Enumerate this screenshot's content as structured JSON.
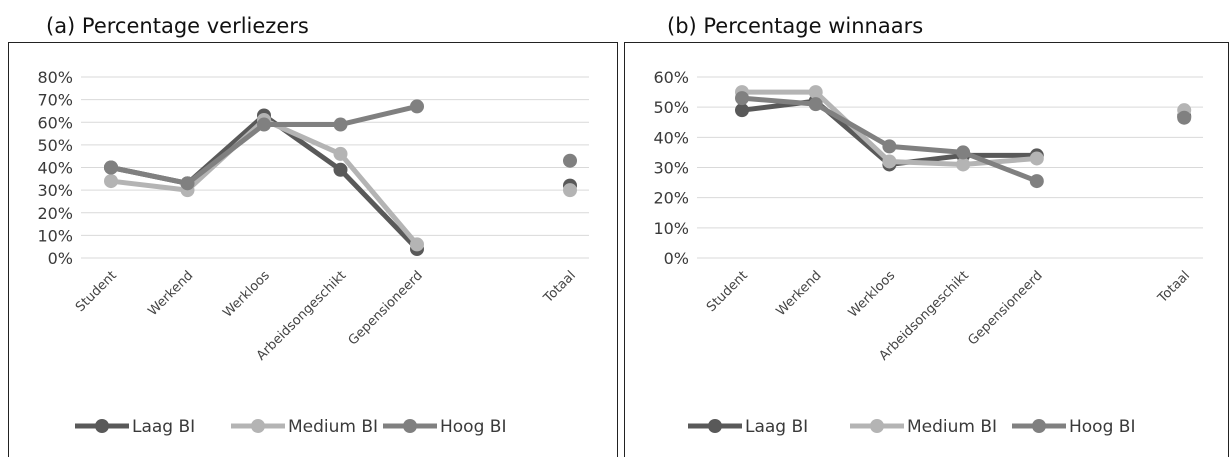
{
  "chart_data": [
    {
      "type": "line",
      "title": "(a)  Percentage verliezers",
      "categories": [
        "Student",
        "Werkend",
        "Werkloos",
        "Arbeidsongeschikt",
        "Gepensioneerd",
        "",
        "Totaal"
      ],
      "yticks": [
        "0%",
        "10%",
        "20%",
        "30%",
        "40%",
        "50%",
        "60%",
        "70%",
        "80%"
      ],
      "ylim": [
        0,
        80
      ],
      "series": [
        {
          "name": "Laag BI",
          "color": "#595959",
          "values": [
            40,
            33,
            63,
            39,
            4,
            null,
            32
          ]
        },
        {
          "name": "Medium BI",
          "color": "#b4b4b4",
          "values": [
            34,
            30,
            61,
            46,
            6,
            null,
            30
          ]
        },
        {
          "name": "Hoog BI",
          "color": "#808080",
          "values": [
            40,
            33,
            59,
            59,
            67,
            null,
            43
          ]
        }
      ],
      "legend": "bottom"
    },
    {
      "type": "line",
      "title": "(b) Percentage winnaars",
      "categories": [
        "Student",
        "Werkend",
        "Werkloos",
        "Arbeidsongeschikt",
        "Gepensioneerd",
        "",
        "Totaal"
      ],
      "yticks": [
        "0%",
        "10%",
        "20%",
        "30%",
        "40%",
        "50%",
        "60%"
      ],
      "ylim": [
        0,
        60
      ],
      "series": [
        {
          "name": "Laag BI",
          "color": "#595959",
          "values": [
            49,
            52,
            31,
            34,
            34,
            null,
            47
          ]
        },
        {
          "name": "Medium BI",
          "color": "#b4b4b4",
          "values": [
            55,
            55,
            32,
            31,
            33,
            null,
            49
          ]
        },
        {
          "name": "Hoog BI",
          "color": "#808080",
          "values": [
            53,
            51,
            37,
            35,
            25.5,
            null,
            46.5
          ]
        }
      ],
      "legend": "bottom"
    }
  ]
}
